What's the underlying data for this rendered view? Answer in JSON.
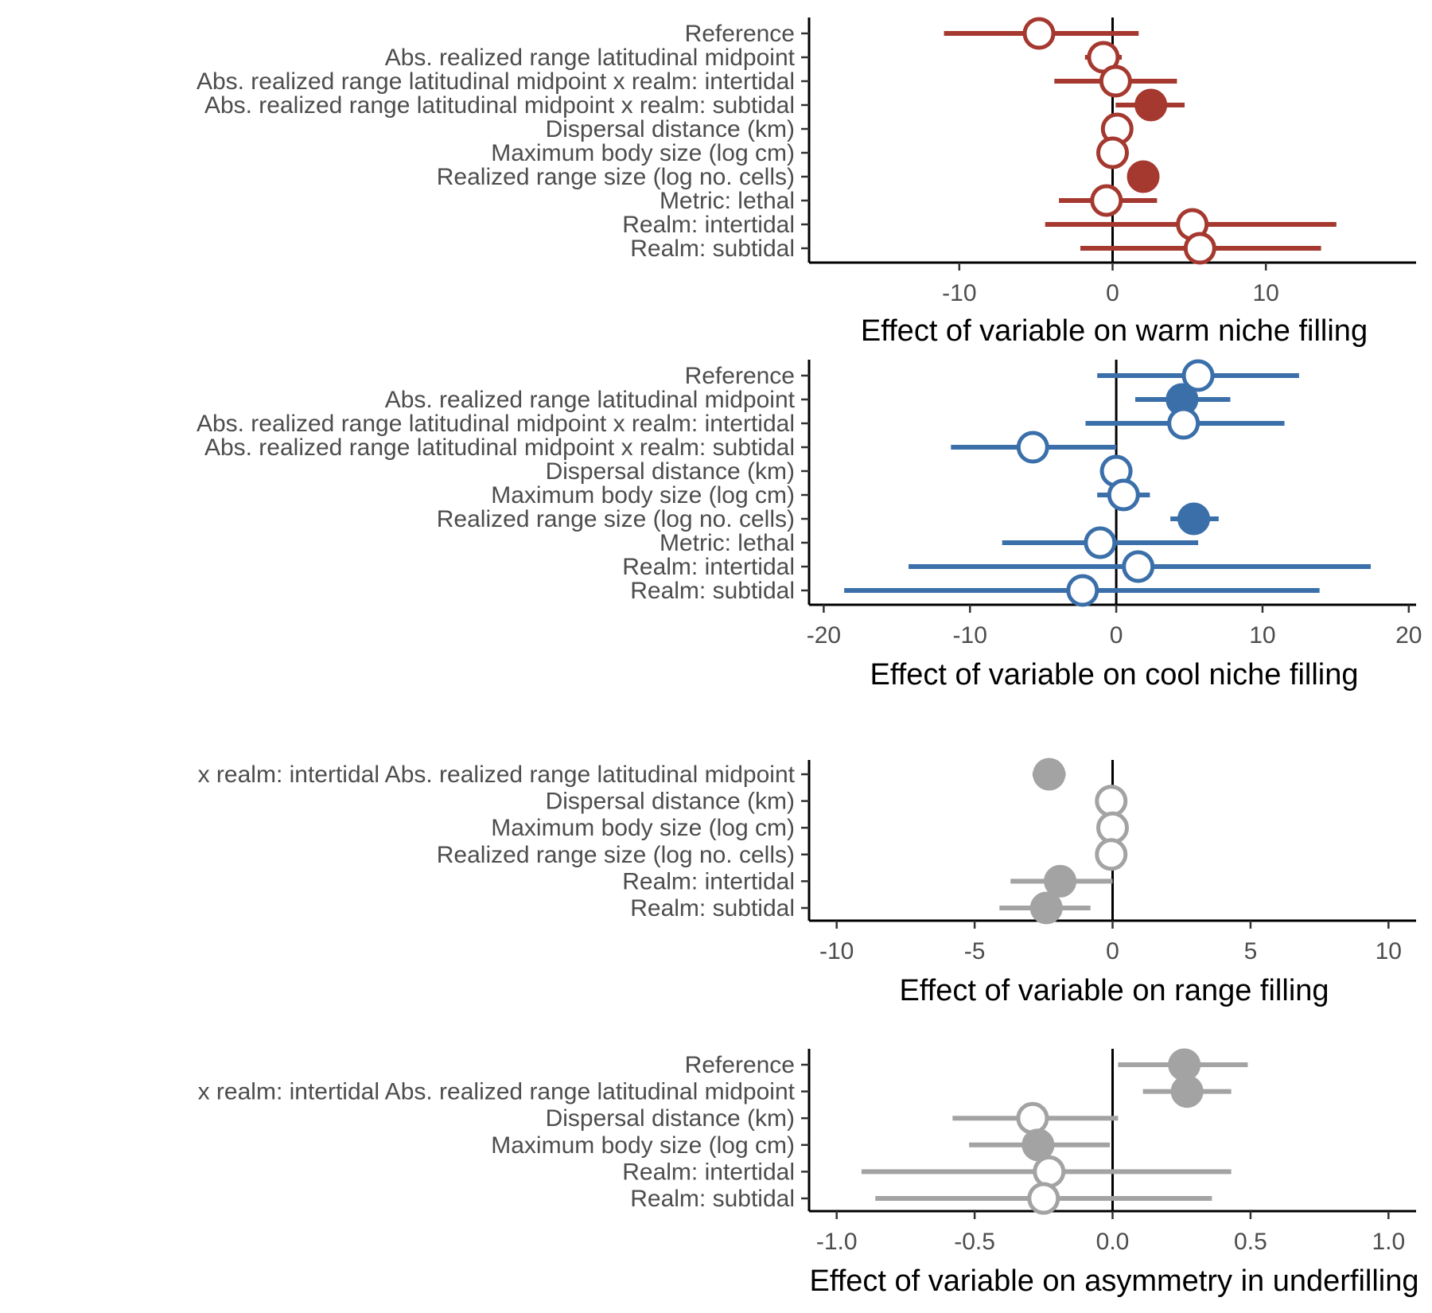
{
  "chart_data": [
    {
      "type": "forest",
      "title": "",
      "xlabel": "Effect of variable on warm niche filling",
      "xlim": [
        -19.8,
        19.8
      ],
      "xticks": [
        -10,
        0,
        10
      ],
      "grid": false,
      "color": "#A5382F",
      "rows": [
        {
          "label": "Reference",
          "estimate": -4.8,
          "lower": -11.0,
          "upper": 1.7,
          "significant": false
        },
        {
          "label": "Abs. realized range latitudinal midpoint ",
          "estimate": -0.6,
          "lower": -1.8,
          "upper": 0.6,
          "significant": false
        },
        {
          "label": "Abs. realized range latitudinal midpoint x realm: intertidal",
          "estimate": 0.2,
          "lower": -3.8,
          "upper": 4.2,
          "significant": false
        },
        {
          "label": "Abs. realized range latitudinal midpoint x realm: subtidal",
          "estimate": 2.5,
          "lower": 0.2,
          "upper": 4.7,
          "significant": true
        },
        {
          "label": "Dispersal distance (km)",
          "estimate": 0.3,
          "lower": -0.3,
          "upper": 0.9,
          "significant": false
        },
        {
          "label": "Maximum body size (log cm)",
          "estimate": 0.0,
          "lower": -0.4,
          "upper": 0.4,
          "significant": false
        },
        {
          "label": "Realized range size (log no. cells)",
          "estimate": 2.0,
          "lower": 1.6,
          "upper": 2.4,
          "significant": true
        },
        {
          "label": "Metric: lethal",
          "estimate": -0.4,
          "lower": -3.5,
          "upper": 2.9,
          "significant": false
        },
        {
          "label": "Realm: intertidal",
          "estimate": 5.2,
          "lower": -4.4,
          "upper": 14.6,
          "significant": false
        },
        {
          "label": "Realm: subtidal",
          "estimate": 5.7,
          "lower": -2.1,
          "upper": 13.6,
          "significant": false
        }
      ]
    },
    {
      "type": "forest",
      "title": "",
      "xlabel": "Effect of variable on cool niche filling",
      "xlim": [
        -21,
        20.5
      ],
      "xticks": [
        -20,
        -10,
        0,
        10,
        20
      ],
      "grid": false,
      "color": "#3A6FAA",
      "rows": [
        {
          "label": "Reference",
          "estimate": 5.6,
          "lower": -1.3,
          "upper": 12.5,
          "significant": false
        },
        {
          "label": "Abs. realized range latitudinal midpoint ",
          "estimate": 4.5,
          "lower": 1.3,
          "upper": 7.8,
          "significant": true
        },
        {
          "label": "Abs. realized range latitudinal midpoint x realm: intertidal",
          "estimate": 4.6,
          "lower": -2.1,
          "upper": 11.5,
          "significant": false
        },
        {
          "label": "Abs. realized range latitudinal midpoint x realm: subtidal",
          "estimate": -5.7,
          "lower": -11.3,
          "upper": 0.0,
          "significant": false
        },
        {
          "label": "Dispersal distance (km)",
          "estimate": 0.0,
          "lower": -1.1,
          "upper": 1.1,
          "significant": false
        },
        {
          "label": "Maximum body size (log cm)",
          "estimate": 0.5,
          "lower": -1.3,
          "upper": 2.3,
          "significant": false
        },
        {
          "label": "Realized range size (log no. cells)",
          "estimate": 5.3,
          "lower": 3.7,
          "upper": 7.0,
          "significant": true
        },
        {
          "label": "Metric: lethal",
          "estimate": -1.1,
          "lower": -7.8,
          "upper": 5.6,
          "significant": false
        },
        {
          "label": "Realm: intertidal",
          "estimate": 1.5,
          "lower": -14.2,
          "upper": 17.4,
          "significant": false
        },
        {
          "label": "Realm: subtidal",
          "estimate": -2.3,
          "lower": -18.6,
          "upper": 13.9,
          "significant": false
        }
      ]
    },
    {
      "type": "forest",
      "title": "",
      "xlabel": "Effect of variable on range filling",
      "xlim": [
        -11,
        11
      ],
      "xticks": [
        -10,
        -5,
        0,
        5,
        10
      ],
      "grid": false,
      "color": "#A3A3A3",
      "rows": [
        {
          "label": "x realm: intertidal Abs. realized range latitudinal midpoint",
          "estimate": -2.3,
          "lower": -2.9,
          "upper": -1.7,
          "significant": true
        },
        {
          "label": "Dispersal distance (km)",
          "estimate": -0.05,
          "lower": -0.2,
          "upper": 0.1,
          "significant": false
        },
        {
          "label": "Maximum body size (log cm)",
          "estimate": 0.0,
          "lower": -0.15,
          "upper": 0.15,
          "significant": false
        },
        {
          "label": "Realized range size (log no. cells)",
          "estimate": -0.05,
          "lower": -0.2,
          "upper": 0.1,
          "significant": false
        },
        {
          "label": "Realm: intertidal",
          "estimate": -1.9,
          "lower": -3.7,
          "upper": 0.0,
          "significant": true
        },
        {
          "label": "Realm: subtidal",
          "estimate": -2.4,
          "lower": -4.1,
          "upper": -0.8,
          "significant": true
        }
      ]
    },
    {
      "type": "forest",
      "title": "",
      "xlabel": "Effect of variable on asymmetry in underfilling",
      "xlim": [
        -1.1,
        1.1
      ],
      "xticks": [
        "-1.0",
        "-0.5",
        "0.0",
        "0.5",
        "1.0"
      ],
      "grid": false,
      "color": "#A3A3A3",
      "rows": [
        {
          "label": "Reference",
          "estimate": 0.26,
          "lower": 0.02,
          "upper": 0.49,
          "significant": true
        },
        {
          "label": "x realm: intertidal Abs. realized range latitudinal midpoint",
          "estimate": 0.27,
          "lower": 0.11,
          "upper": 0.43,
          "significant": true
        },
        {
          "label": "Dispersal distance (km)",
          "estimate": -0.29,
          "lower": -0.58,
          "upper": 0.02,
          "significant": false
        },
        {
          "label": "Maximum body size (log cm)",
          "estimate": -0.27,
          "lower": -0.52,
          "upper": -0.01,
          "significant": true
        },
        {
          "label": "Realm: intertidal",
          "estimate": -0.23,
          "lower": -0.91,
          "upper": 0.43,
          "significant": false
        },
        {
          "label": "Realm: subtidal",
          "estimate": -0.25,
          "lower": -0.86,
          "upper": 0.36,
          "significant": false
        }
      ]
    }
  ]
}
